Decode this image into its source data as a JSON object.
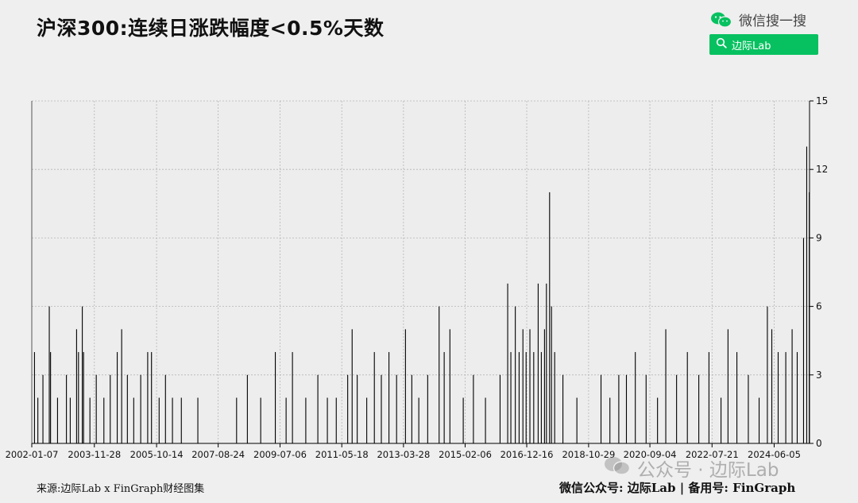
{
  "header": {
    "title": "沪深300:连续日涨跌幅度<0.5%天数",
    "wechat_search_label": "微信搜一搜",
    "search_box_text": "边际Lab",
    "brand_color": "#07c160"
  },
  "footer": {
    "source": "来源:边际Lab x FinGraph财经图集",
    "account": "微信公众号: 边际Lab | 备用号: FinGraph",
    "watermark": "公众号 · 边际Lab"
  },
  "chart_data": {
    "type": "bar",
    "title": "沪深300:连续日涨跌幅度<0.5%天数",
    "xlabel": "",
    "ylabel": "",
    "x_range": [
      "2002-01-07",
      "2025-06-30"
    ],
    "ylim": [
      0,
      15
    ],
    "y_ticks": [
      0,
      3,
      6,
      9,
      12,
      15
    ],
    "y_axis_side": "right",
    "x_tick_labels": [
      "2002-01-07",
      "2003-11-28",
      "2005-10-14",
      "2007-08-24",
      "2009-07-06",
      "2011-05-18",
      "2013-03-28",
      "2015-02-06",
      "2016-12-16",
      "2018-10-29",
      "2020-09-04",
      "2022-07-21",
      "2024-06-05"
    ],
    "grid": true,
    "bar_color": "#000000",
    "series": [
      {
        "values": [
          [
            "2002-02-06",
            4
          ],
          [
            "2002-03-15",
            2
          ],
          [
            "2002-05-10",
            3
          ],
          [
            "2002-07-19",
            6
          ],
          [
            "2002-08-02",
            4
          ],
          [
            "2002-10-18",
            2
          ],
          [
            "2003-01-24",
            3
          ],
          [
            "2003-03-07",
            2
          ],
          [
            "2003-05-16",
            5
          ],
          [
            "2003-06-06",
            4
          ],
          [
            "2003-07-18",
            6
          ],
          [
            "2003-08-01",
            4
          ],
          [
            "2003-10-10",
            2
          ],
          [
            "2003-12-19",
            3
          ],
          [
            "2004-03-12",
            2
          ],
          [
            "2004-05-21",
            3
          ],
          [
            "2004-08-06",
            4
          ],
          [
            "2004-09-24",
            5
          ],
          [
            "2004-11-26",
            3
          ],
          [
            "2005-02-04",
            2
          ],
          [
            "2005-04-22",
            3
          ],
          [
            "2005-07-08",
            4
          ],
          [
            "2005-08-19",
            4
          ],
          [
            "2005-11-11",
            2
          ],
          [
            "2006-01-20",
            3
          ],
          [
            "2006-04-07",
            2
          ],
          [
            "2006-07-14",
            2
          ],
          [
            "2007-01-12",
            2
          ],
          [
            "2008-03-14",
            2
          ],
          [
            "2008-07-11",
            3
          ],
          [
            "2008-12-05",
            2
          ],
          [
            "2009-05-15",
            4
          ],
          [
            "2009-09-11",
            2
          ],
          [
            "2009-11-20",
            4
          ],
          [
            "2010-04-16",
            2
          ],
          [
            "2010-08-27",
            3
          ],
          [
            "2010-12-10",
            2
          ],
          [
            "2011-03-18",
            2
          ],
          [
            "2011-07-22",
            3
          ],
          [
            "2011-09-09",
            5
          ],
          [
            "2011-11-04",
            3
          ],
          [
            "2012-02-17",
            2
          ],
          [
            "2012-05-11",
            4
          ],
          [
            "2012-07-27",
            3
          ],
          [
            "2012-10-19",
            4
          ],
          [
            "2013-01-11",
            3
          ],
          [
            "2013-04-19",
            5
          ],
          [
            "2013-06-28",
            3
          ],
          [
            "2013-09-13",
            2
          ],
          [
            "2013-12-20",
            3
          ],
          [
            "2014-04-25",
            6
          ],
          [
            "2014-06-20",
            4
          ],
          [
            "2014-08-22",
            5
          ],
          [
            "2015-01-16",
            2
          ],
          [
            "2015-05-08",
            3
          ],
          [
            "2015-09-18",
            2
          ],
          [
            "2016-02-26",
            3
          ],
          [
            "2016-05-20",
            7
          ],
          [
            "2016-06-24",
            4
          ],
          [
            "2016-08-12",
            6
          ],
          [
            "2016-09-23",
            4
          ],
          [
            "2016-11-04",
            5
          ],
          [
            "2016-12-09",
            4
          ],
          [
            "2017-01-20",
            5
          ],
          [
            "2017-03-03",
            4
          ],
          [
            "2017-04-21",
            7
          ],
          [
            "2017-05-26",
            4
          ],
          [
            "2017-06-30",
            5
          ],
          [
            "2017-07-21",
            7
          ],
          [
            "2017-08-25",
            11
          ],
          [
            "2017-09-15",
            6
          ],
          [
            "2017-10-20",
            4
          ],
          [
            "2018-01-19",
            3
          ],
          [
            "2018-06-22",
            2
          ],
          [
            "2019-03-15",
            3
          ],
          [
            "2019-06-21",
            2
          ],
          [
            "2019-09-27",
            3
          ],
          [
            "2019-12-20",
            3
          ],
          [
            "2020-03-27",
            4
          ],
          [
            "2020-07-24",
            3
          ],
          [
            "2020-11-27",
            2
          ],
          [
            "2021-02-26",
            5
          ],
          [
            "2021-06-25",
            3
          ],
          [
            "2021-10-22",
            4
          ],
          [
            "2022-02-25",
            3
          ],
          [
            "2022-06-17",
            4
          ],
          [
            "2022-10-28",
            2
          ],
          [
            "2023-01-13",
            5
          ],
          [
            "2023-04-21",
            4
          ],
          [
            "2023-08-25",
            3
          ],
          [
            "2023-12-22",
            2
          ],
          [
            "2024-03-22",
            6
          ],
          [
            "2024-05-10",
            5
          ],
          [
            "2024-07-19",
            4
          ],
          [
            "2024-10-11",
            4
          ],
          [
            "2024-12-20",
            5
          ],
          [
            "2025-02-14",
            4
          ],
          [
            "2025-04-25",
            9
          ],
          [
            "2025-05-30",
            13
          ],
          [
            "2025-06-27",
            11
          ]
        ]
      }
    ]
  }
}
